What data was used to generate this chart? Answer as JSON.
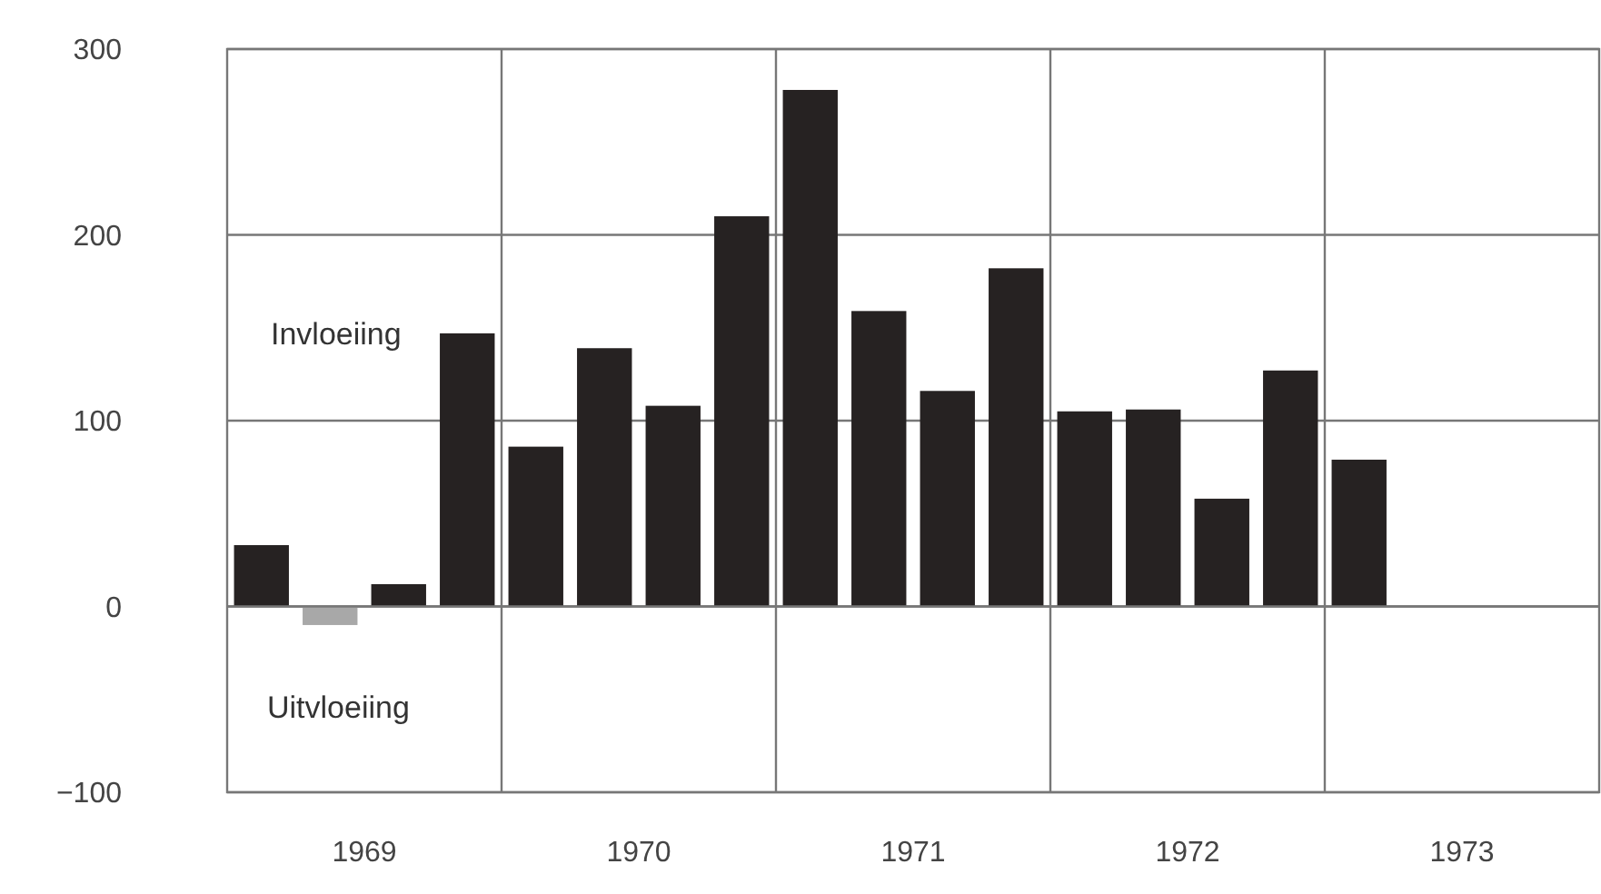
{
  "chart_data": {
    "type": "bar",
    "x": [
      1969.125,
      1969.375,
      1969.625,
      1969.875,
      1970.125,
      1970.375,
      1970.625,
      1970.875,
      1971.125,
      1971.375,
      1971.625,
      1971.875,
      1972.125,
      1972.375,
      1972.625,
      1972.875,
      1973.125
    ],
    "values": [
      33,
      -10,
      12,
      147,
      86,
      139,
      108,
      210,
      278,
      159,
      116,
      182,
      105,
      106,
      58,
      127,
      79
    ],
    "colors": [
      "#262222",
      "#a8a8a8",
      "#262222",
      "#262222",
      "#262222",
      "#262222",
      "#262222",
      "#262222",
      "#262222",
      "#262222",
      "#262222",
      "#262222",
      "#262222",
      "#262222",
      "#262222",
      "#262222",
      "#262222"
    ],
    "xlim": [
      1969,
      1974
    ],
    "xticks": [
      {
        "value": 1969.5,
        "label": "1969"
      },
      {
        "value": 1970,
        "label": null
      },
      {
        "value": 1970.5,
        "label": "1970"
      },
      {
        "value": 1971,
        "label": null
      },
      {
        "value": 1971.5,
        "label": "1971"
      },
      {
        "value": 1972,
        "label": null
      },
      {
        "value": 1972.5,
        "label": "1972"
      },
      {
        "value": 1973,
        "label": null
      },
      {
        "value": 1973.5,
        "label": "1973"
      }
    ],
    "ylim": [
      -100,
      300
    ],
    "yticks": [
      {
        "value": -100,
        "label": "−100"
      },
      0,
      100,
      200,
      300
    ],
    "grid": true,
    "annotations": [
      "Invloeiing",
      "Uitvloeiing"
    ]
  }
}
